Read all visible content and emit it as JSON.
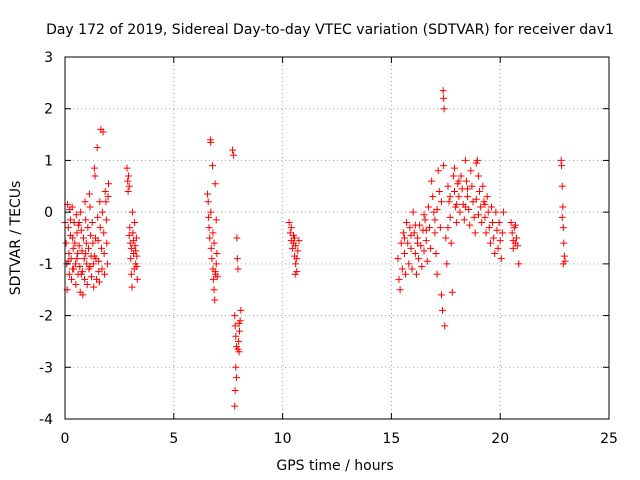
{
  "chart_data": {
    "type": "scatter",
    "title": "Day 172 of 2019, Sidereal Day-to-day VTEC variation (SDTVAR) for receiver dav1",
    "xlabel": "GPS time / hours",
    "ylabel": "SDTVAR / TECUs",
    "xlim": [
      0,
      25
    ],
    "ylim": [
      -4,
      3
    ],
    "xticks": [
      0,
      5,
      10,
      15,
      20,
      25
    ],
    "yticks": [
      -4,
      -3,
      -2,
      -1,
      0,
      1,
      2,
      3
    ],
    "xtick_labels": [
      "0",
      "5",
      "10",
      "15",
      "20",
      "25"
    ],
    "ytick_labels": [
      "-4",
      "-3",
      "-2",
      "-1",
      "0",
      "1",
      "2",
      "3"
    ],
    "grid": true,
    "marker": "+",
    "color": "#ff0000",
    "series": [
      {
        "name": "SDTVAR",
        "points": [
          [
            0.0,
            -0.2
          ],
          [
            0.05,
            -0.6
          ],
          [
            0.08,
            -1.0
          ],
          [
            0.1,
            -1.5
          ],
          [
            0.12,
            0.15
          ],
          [
            0.15,
            -0.3
          ],
          [
            0.18,
            -0.8
          ],
          [
            0.2,
            -1.2
          ],
          [
            0.22,
            0.05
          ],
          [
            0.25,
            -0.45
          ],
          [
            0.28,
            -0.9
          ],
          [
            0.3,
            -1.3
          ],
          [
            0.33,
            0.1
          ],
          [
            0.35,
            -0.5
          ],
          [
            0.38,
            -0.7
          ],
          [
            0.4,
            -1.1
          ],
          [
            0.42,
            -0.2
          ],
          [
            0.45,
            -0.6
          ],
          [
            0.48,
            -1.0
          ],
          [
            0.5,
            -1.4
          ],
          [
            0.52,
            -0.05
          ],
          [
            0.55,
            -0.4
          ],
          [
            0.58,
            -0.8
          ],
          [
            0.6,
            -1.2
          ],
          [
            0.62,
            -0.25
          ],
          [
            0.65,
            -0.65
          ],
          [
            0.68,
            -1.05
          ],
          [
            0.7,
            -1.55
          ],
          [
            0.72,
            0.0
          ],
          [
            0.75,
            -0.35
          ],
          [
            0.78,
            -0.75
          ],
          [
            0.8,
            -1.15
          ],
          [
            0.82,
            -1.6
          ],
          [
            0.85,
            -0.5
          ],
          [
            0.88,
            -0.9
          ],
          [
            0.9,
            -1.3
          ],
          [
            0.92,
            0.2
          ],
          [
            0.95,
            -0.15
          ],
          [
            0.98,
            -0.6
          ],
          [
            1.0,
            -1.0
          ],
          [
            1.02,
            -1.4
          ],
          [
            1.05,
            -0.3
          ],
          [
            1.08,
            -0.7
          ],
          [
            1.1,
            -1.1
          ],
          [
            1.12,
            0.35
          ],
          [
            1.15,
            0.1
          ],
          [
            1.18,
            -0.45
          ],
          [
            1.2,
            -0.85
          ],
          [
            1.22,
            -1.25
          ],
          [
            1.25,
            -0.2
          ],
          [
            1.28,
            -0.6
          ],
          [
            1.3,
            -1.0
          ],
          [
            1.32,
            -1.45
          ],
          [
            1.35,
            0.85
          ],
          [
            1.38,
            0.7
          ],
          [
            1.4,
            -0.5
          ],
          [
            1.42,
            -0.9
          ],
          [
            1.45,
            -1.3
          ],
          [
            1.48,
            1.25
          ],
          [
            1.5,
            -0.1
          ],
          [
            1.52,
            -0.55
          ],
          [
            1.55,
            -0.95
          ],
          [
            1.58,
            -1.35
          ],
          [
            1.6,
            0.2
          ],
          [
            1.62,
            -0.3
          ],
          [
            1.65,
            1.6
          ],
          [
            1.68,
            -0.7
          ],
          [
            1.7,
            -1.1
          ],
          [
            1.72,
            0.0
          ],
          [
            1.75,
            1.55
          ],
          [
            1.78,
            -0.4
          ],
          [
            1.8,
            -0.8
          ],
          [
            1.82,
            -1.2
          ],
          [
            1.85,
            0.4
          ],
          [
            1.88,
            0.2
          ],
          [
            1.9,
            -0.15
          ],
          [
            1.92,
            -0.6
          ],
          [
            1.95,
            -1.0
          ],
          [
            1.98,
            0.3
          ],
          [
            2.0,
            0.55
          ],
          [
            0.15,
            -0.95
          ],
          [
            0.35,
            -1.1
          ],
          [
            0.55,
            -0.9
          ],
          [
            0.75,
            -1.2
          ],
          [
            0.95,
            -0.8
          ],
          [
            1.15,
            -1.05
          ],
          [
            1.35,
            -0.85
          ],
          [
            1.55,
            -1.15
          ],
          [
            0.25,
            -0.15
          ],
          [
            0.65,
            -0.2
          ],
          [
            2.85,
            0.85
          ],
          [
            2.88,
            0.6
          ],
          [
            2.9,
            0.4
          ],
          [
            2.92,
            0.7
          ],
          [
            2.95,
            0.5
          ],
          [
            2.98,
            -0.3
          ],
          [
            3.0,
            -0.6
          ],
          [
            3.02,
            -0.9
          ],
          [
            3.05,
            -1.2
          ],
          [
            3.08,
            -1.45
          ],
          [
            3.1,
            0.0
          ],
          [
            3.12,
            -0.4
          ],
          [
            3.15,
            -0.8
          ],
          [
            3.18,
            -1.1
          ],
          [
            3.2,
            -0.2
          ],
          [
            3.22,
            -0.65
          ],
          [
            3.25,
            -1.0
          ],
          [
            3.28,
            -0.5
          ],
          [
            3.3,
            -0.85
          ],
          [
            3.32,
            -1.3
          ],
          [
            2.95,
            -0.45
          ],
          [
            3.05,
            -0.7
          ],
          [
            3.15,
            -0.55
          ],
          [
            3.25,
            -0.75
          ],
          [
            3.3,
            -1.05
          ],
          [
            6.55,
            0.35
          ],
          [
            6.58,
            0.2
          ],
          [
            6.6,
            -0.1
          ],
          [
            6.62,
            -0.3
          ],
          [
            6.65,
            -0.5
          ],
          [
            6.68,
            1.4
          ],
          [
            6.7,
            1.35
          ],
          [
            6.72,
            -0.7
          ],
          [
            6.75,
            -0.9
          ],
          [
            6.78,
            0.9
          ],
          [
            6.8,
            -1.1
          ],
          [
            6.82,
            -1.3
          ],
          [
            6.85,
            -1.5
          ],
          [
            6.88,
            -1.7
          ],
          [
            6.9,
            0.55
          ],
          [
            6.92,
            -1.2
          ],
          [
            6.95,
            -1.0
          ],
          [
            6.98,
            -0.8
          ],
          [
            6.7,
            0.0
          ],
          [
            6.8,
            -0.4
          ],
          [
            6.85,
            -0.6
          ],
          [
            6.9,
            -1.15
          ],
          [
            6.95,
            -0.15
          ],
          [
            7.0,
            -1.25
          ],
          [
            7.7,
            1.2
          ],
          [
            7.75,
            1.1
          ],
          [
            7.8,
            -2.0
          ],
          [
            7.82,
            -2.2
          ],
          [
            7.85,
            -2.4
          ],
          [
            7.88,
            -2.6
          ],
          [
            7.9,
            -0.5
          ],
          [
            7.92,
            -0.9
          ],
          [
            7.95,
            -1.1
          ],
          [
            7.98,
            -2.5
          ],
          [
            8.0,
            -2.7
          ],
          [
            8.02,
            -2.3
          ],
          [
            8.05,
            -2.1
          ],
          [
            8.08,
            -1.9
          ],
          [
            7.85,
            -3.0
          ],
          [
            7.88,
            -3.2
          ],
          [
            7.82,
            -3.45
          ],
          [
            7.8,
            -3.75
          ],
          [
            7.95,
            -2.65
          ],
          [
            8.0,
            -2.15
          ],
          [
            10.3,
            -0.2
          ],
          [
            10.35,
            -0.4
          ],
          [
            10.4,
            -0.55
          ],
          [
            10.45,
            -0.7
          ],
          [
            10.5,
            -0.6
          ],
          [
            10.55,
            -0.85
          ],
          [
            10.6,
            -1.0
          ],
          [
            10.65,
            -1.15
          ],
          [
            10.4,
            -0.3
          ],
          [
            10.5,
            -0.45
          ],
          [
            10.55,
            -0.5
          ],
          [
            10.6,
            -0.65
          ],
          [
            10.65,
            -0.9
          ],
          [
            10.7,
            -0.75
          ],
          [
            10.75,
            -0.55
          ],
          [
            10.58,
            -1.2
          ],
          [
            15.3,
            -0.9
          ],
          [
            15.35,
            -1.3
          ],
          [
            15.4,
            -1.5
          ],
          [
            15.45,
            -0.6
          ],
          [
            15.5,
            -1.1
          ],
          [
            15.55,
            -0.4
          ],
          [
            15.6,
            -0.8
          ],
          [
            15.65,
            -1.2
          ],
          [
            15.7,
            -0.2
          ],
          [
            15.75,
            -0.6
          ],
          [
            15.8,
            -1.0
          ],
          [
            15.85,
            -0.3
          ],
          [
            15.9,
            -0.7
          ],
          [
            15.95,
            -1.1
          ],
          [
            16.0,
            0.0
          ],
          [
            16.05,
            -0.4
          ],
          [
            16.1,
            -0.8
          ],
          [
            16.15,
            -1.2
          ],
          [
            16.2,
            -0.5
          ],
          [
            16.25,
            -0.9
          ],
          [
            16.3,
            -0.25
          ],
          [
            16.35,
            -0.65
          ],
          [
            16.4,
            -1.05
          ],
          [
            16.45,
            -0.35
          ],
          [
            16.5,
            -0.75
          ],
          [
            16.55,
            -0.15
          ],
          [
            16.6,
            -0.55
          ],
          [
            16.65,
            -0.95
          ],
          [
            16.7,
            0.1
          ],
          [
            16.75,
            -0.3
          ],
          [
            16.8,
            -0.7
          ],
          [
            16.85,
            0.6
          ],
          [
            16.9,
            0.3
          ],
          [
            16.95,
            0.0
          ],
          [
            17.0,
            -0.4
          ],
          [
            17.05,
            -0.8
          ],
          [
            17.1,
            -1.2
          ],
          [
            17.15,
            0.8
          ],
          [
            17.2,
            0.4
          ],
          [
            17.25,
            -0.3
          ],
          [
            17.3,
            -1.6
          ],
          [
            17.35,
            -1.9
          ],
          [
            17.38,
            2.35
          ],
          [
            17.4,
            2.2
          ],
          [
            17.42,
            2.0
          ],
          [
            17.45,
            -2.2
          ],
          [
            17.5,
            -0.5
          ],
          [
            17.55,
            -1.0
          ],
          [
            17.6,
            0.5
          ],
          [
            17.65,
            0.2
          ],
          [
            17.7,
            -0.1
          ],
          [
            17.75,
            -0.6
          ],
          [
            17.8,
            -1.55
          ],
          [
            17.85,
            0.7
          ],
          [
            17.9,
            0.4
          ],
          [
            17.95,
            0.1
          ],
          [
            18.0,
            -0.2
          ],
          [
            18.05,
            0.55
          ],
          [
            18.1,
            0.3
          ],
          [
            18.15,
            0.0
          ],
          [
            18.2,
            0.7
          ],
          [
            18.25,
            0.45
          ],
          [
            18.3,
            0.15
          ],
          [
            18.35,
            -0.15
          ],
          [
            18.4,
            1.0
          ],
          [
            18.45,
            0.6
          ],
          [
            18.5,
            0.3
          ],
          [
            18.55,
            0.05
          ],
          [
            18.6,
            -0.25
          ],
          [
            18.65,
            0.8
          ],
          [
            18.7,
            0.5
          ],
          [
            18.75,
            0.2
          ],
          [
            18.8,
            -0.1
          ],
          [
            18.85,
            -0.4
          ],
          [
            18.9,
            0.95
          ],
          [
            18.95,
            1.0
          ],
          [
            19.0,
            0.7
          ],
          [
            19.05,
            0.4
          ],
          [
            19.1,
            0.1
          ],
          [
            19.15,
            -0.2
          ],
          [
            19.2,
            0.5
          ],
          [
            19.25,
            0.2
          ],
          [
            19.3,
            -0.1
          ],
          [
            19.35,
            -0.4
          ],
          [
            19.4,
            0.3
          ],
          [
            19.45,
            0.0
          ],
          [
            19.5,
            -0.3
          ],
          [
            19.55,
            -0.6
          ],
          [
            19.6,
            0.1
          ],
          [
            19.65,
            -0.2
          ],
          [
            19.7,
            -0.5
          ],
          [
            19.75,
            -0.8
          ],
          [
            19.8,
            0.0
          ],
          [
            19.85,
            -0.35
          ],
          [
            19.9,
            -0.7
          ],
          [
            19.95,
            -0.2
          ],
          [
            20.0,
            -0.55
          ],
          [
            20.05,
            -0.9
          ],
          [
            20.1,
            -0.4
          ],
          [
            20.15,
            0.0
          ],
          [
            20.5,
            -0.2
          ],
          [
            20.55,
            -0.4
          ],
          [
            20.6,
            -0.55
          ],
          [
            20.65,
            -0.3
          ],
          [
            20.7,
            -0.6
          ],
          [
            20.75,
            -0.5
          ],
          [
            20.8,
            -0.65
          ],
          [
            20.85,
            -1.0
          ],
          [
            20.6,
            -0.7
          ],
          [
            20.7,
            -0.25
          ],
          [
            22.8,
            1.0
          ],
          [
            22.82,
            0.9
          ],
          [
            22.85,
            0.5
          ],
          [
            22.88,
            0.1
          ],
          [
            22.9,
            -0.3
          ],
          [
            22.92,
            -0.6
          ],
          [
            22.95,
            -0.85
          ],
          [
            22.98,
            -0.95
          ],
          [
            22.85,
            -0.1
          ],
          [
            22.9,
            -1.0
          ],
          [
            15.6,
            -0.5
          ],
          [
            15.9,
            -0.45
          ],
          [
            16.2,
            -0.6
          ],
          [
            16.6,
            -0.35
          ],
          [
            17.0,
            -0.15
          ],
          [
            17.3,
            0.2
          ],
          [
            17.7,
            0.3
          ],
          [
            18.1,
            0.6
          ],
          [
            18.5,
            0.45
          ],
          [
            18.9,
            0.25
          ],
          [
            16.1,
            -0.25
          ],
          [
            16.5,
            -0.05
          ],
          [
            17.1,
            0.05
          ],
          [
            17.6,
            -0.3
          ],
          [
            18.0,
            0.15
          ],
          [
            18.4,
            0.1
          ],
          [
            19.0,
            -0.05
          ],
          [
            19.3,
            0.15
          ],
          [
            17.4,
            0.9
          ],
          [
            17.9,
            0.85
          ]
        ]
      }
    ]
  }
}
